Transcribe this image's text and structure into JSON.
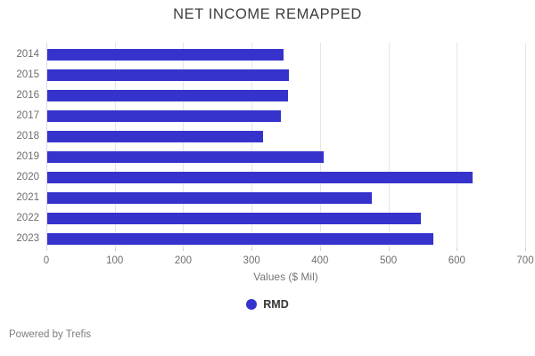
{
  "title": "NET INCOME REMAPPED",
  "chart_data": {
    "type": "bar",
    "orientation": "horizontal",
    "title": "NET INCOME REMAPPED",
    "categories": [
      "2014",
      "2015",
      "2016",
      "2017",
      "2018",
      "2019",
      "2020",
      "2021",
      "2022",
      "2023"
    ],
    "series": [
      {
        "name": "RMD",
        "color": "#3533cc",
        "values": [
          345,
          353,
          352,
          342,
          316,
          404,
          622,
          474,
          546,
          564
        ]
      }
    ],
    "xlabel": "Values ($ Mil)",
    "ylabel": "",
    "xlim": [
      0,
      700
    ],
    "xticks": [
      0,
      100,
      200,
      300,
      400,
      500,
      600,
      700
    ],
    "grid": "vertical",
    "legend_position": "bottom"
  },
  "legend": {
    "items": [
      {
        "label": "RMD",
        "marker": "circle-icon",
        "color": "#3533cc"
      }
    ]
  },
  "footer": {
    "text": "Powered by Trefis"
  },
  "colors": {
    "bar": "#3533cc",
    "title_text": "#3d3d3d",
    "axis_text": "#6e6e6e",
    "gridline": "#e6e6e6",
    "background": "#ffffff"
  }
}
